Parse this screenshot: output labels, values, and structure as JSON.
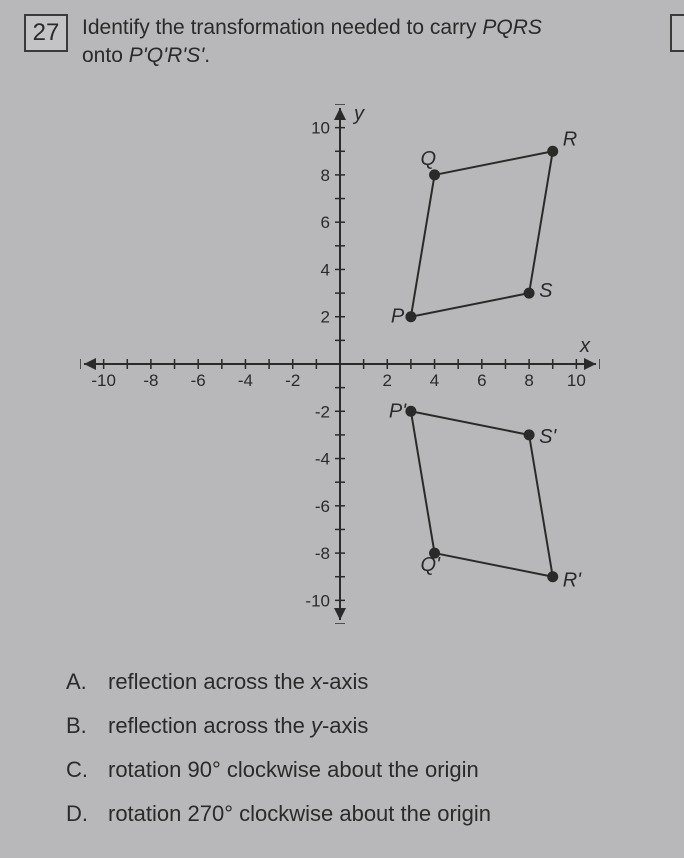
{
  "question": {
    "number": "27",
    "text_line1": "Identify the transformation needed to carry ",
    "pqrs1": "PQRS",
    "text_line2": "onto ",
    "pqrs2": "P'Q'R'S'",
    "period": "."
  },
  "graph": {
    "x_axis_label": "x",
    "y_axis_label": "y",
    "xlim": [
      -11,
      11
    ],
    "ylim": [
      -11,
      11
    ],
    "tick_step": 2,
    "x_ticks": [
      "-10",
      "-8",
      "-6",
      "-4",
      "-2",
      "2",
      "4",
      "6",
      "8",
      "10"
    ],
    "y_ticks_pos": [
      "2",
      "4",
      "6",
      "8",
      "10"
    ],
    "y_ticks_neg": [
      "-2",
      "-4",
      "-6",
      "-8",
      "-10"
    ],
    "axis_color": "#2a2a2a",
    "point_fill": "#2a2a2a",
    "line_color": "#2a2a2a",
    "tick_fontsize": 17,
    "label_fontsize": 20,
    "point_radius": 5.5,
    "line_width": 2,
    "shapes": {
      "PQRS": {
        "points": {
          "P": {
            "x": 3,
            "y": 2,
            "label": "P",
            "label_dx": -20,
            "label_dy": 6
          },
          "Q": {
            "x": 4,
            "y": 8,
            "label": "Q",
            "label_dx": -14,
            "label_dy": -10
          },
          "R": {
            "x": 9,
            "y": 9,
            "label": "R",
            "label_dx": 10,
            "label_dy": -6
          },
          "S": {
            "x": 8,
            "y": 3,
            "label": "S",
            "label_dx": 10,
            "label_dy": 4
          }
        }
      },
      "PQRS_prime": {
        "points": {
          "P": {
            "x": 3,
            "y": -2,
            "label": "P'",
            "label_dx": -22,
            "label_dy": 6
          },
          "Q": {
            "x": 4,
            "y": -8,
            "label": "Q'",
            "label_dx": -14,
            "label_dy": 18
          },
          "R": {
            "x": 9,
            "y": -9,
            "label": "R'",
            "label_dx": 10,
            "label_dy": 10
          },
          "S": {
            "x": 8,
            "y": -3,
            "label": "S'",
            "label_dx": 10,
            "label_dy": 8
          }
        }
      }
    }
  },
  "answers": [
    {
      "letter": "A.",
      "text_pre": "reflection across the ",
      "ital": "x",
      "text_post": "-axis"
    },
    {
      "letter": "B.",
      "text_pre": "reflection across the ",
      "ital": "y",
      "text_post": "-axis"
    },
    {
      "letter": "C.",
      "text_pre": "rotation 90° clockwise about the origin",
      "ital": "",
      "text_post": ""
    },
    {
      "letter": "D.",
      "text_pre": "rotation 270° clockwise about the origin",
      "ital": "",
      "text_post": ""
    }
  ]
}
